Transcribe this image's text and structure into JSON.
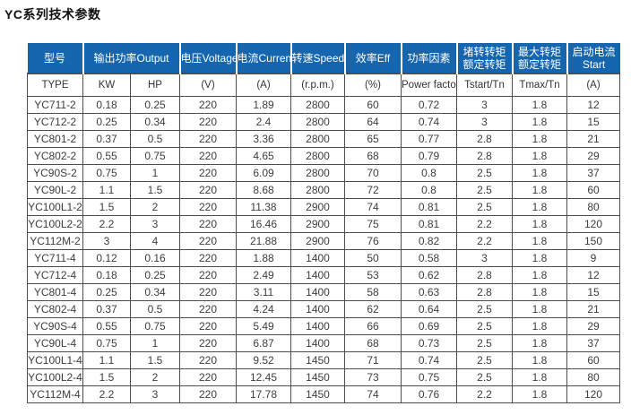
{
  "page": {
    "title": "YC系列技术参数"
  },
  "table": {
    "header_top": [
      {
        "lines": [
          "型号"
        ],
        "span": 1
      },
      {
        "lines": [
          "输出功率Output"
        ],
        "span": 2
      },
      {
        "lines": [
          "电压Voltage"
        ],
        "span": 1
      },
      {
        "lines": [
          "电流Current"
        ],
        "span": 1
      },
      {
        "lines": [
          "转速Speed"
        ],
        "span": 1
      },
      {
        "lines": [
          "效率Eff"
        ],
        "span": 1
      },
      {
        "lines": [
          "功率因素"
        ],
        "span": 1
      },
      {
        "lines": [
          "堵转转矩",
          "额定转矩"
        ],
        "span": 1
      },
      {
        "lines": [
          "最大转矩",
          "额定转矩"
        ],
        "span": 1
      },
      {
        "lines": [
          "启动电流",
          "Start"
        ],
        "span": 1
      }
    ],
    "header_sub": [
      "TYPE",
      "KW",
      "HP",
      "(V)",
      "(A)",
      "(r.p.m.)",
      "(%)",
      "Power factor",
      "Tstart/Tn",
      "Tmax/Tn",
      "(A)"
    ],
    "rows": [
      [
        "YC711-2",
        "0.18",
        "0.25",
        "220",
        "1.89",
        "2800",
        "60",
        "0.72",
        "3",
        "1.8",
        "12"
      ],
      [
        "YC712-2",
        "0.25",
        "0.34",
        "220",
        "2.4",
        "2800",
        "64",
        "0.74",
        "3",
        "1.8",
        "15"
      ],
      [
        "YC801-2",
        "0.37",
        "0.5",
        "220",
        "3.36",
        "2800",
        "65",
        "0.77",
        "2.8",
        "1.8",
        "21"
      ],
      [
        "YC802-2",
        "0.55",
        "0.75",
        "220",
        "4.65",
        "2800",
        "68",
        "0.79",
        "2.8",
        "1.8",
        "29"
      ],
      [
        "YC90S-2",
        "0.75",
        "1",
        "220",
        "6.09",
        "2800",
        "70",
        "0.8",
        "2.5",
        "1.8",
        "37"
      ],
      [
        "YC90L-2",
        "1.1",
        "1.5",
        "220",
        "8.68",
        "2800",
        "72",
        "0.8",
        "2.5",
        "1.8",
        "60"
      ],
      [
        "YC100L1-2",
        "1.5",
        "2",
        "220",
        "11.38",
        "2900",
        "74",
        "0.81",
        "2.5",
        "1.8",
        "80"
      ],
      [
        "YC100L2-2",
        "2.2",
        "3",
        "220",
        "16.46",
        "2900",
        "75",
        "0.81",
        "2.2",
        "1.8",
        "120"
      ],
      [
        "YC112M-2",
        "3",
        "4",
        "220",
        "21.88",
        "2900",
        "76",
        "0.82",
        "2.2",
        "1.8",
        "150"
      ],
      [
        "YC711-4",
        "0.12",
        "0.16",
        "220",
        "1.88",
        "1400",
        "50",
        "0.58",
        "3",
        "1.8",
        "9"
      ],
      [
        "YC712-4",
        "0.18",
        "0.25",
        "220",
        "2.49",
        "1400",
        "53",
        "0.62",
        "2.8",
        "1.8",
        "12"
      ],
      [
        "YC801-4",
        "0.25",
        "0.34",
        "220",
        "3.11",
        "1400",
        "58",
        "0.63",
        "2.8",
        "1.8",
        "15"
      ],
      [
        "YC802-4",
        "0.37",
        "0.5",
        "220",
        "4.24",
        "1400",
        "62",
        "0.64",
        "2.5",
        "1.8",
        "21"
      ],
      [
        "YC90S-4",
        "0.55",
        "0.75",
        "220",
        "5.49",
        "1400",
        "66",
        "0.69",
        "2.5",
        "1.8",
        "29"
      ],
      [
        "YC90L-4",
        "0.75",
        "1",
        "220",
        "6.87",
        "1400",
        "68",
        "0.73",
        "2.5",
        "1.8",
        "37"
      ],
      [
        "YC100L1-4",
        "1.1",
        "1.5",
        "220",
        "9.52",
        "1450",
        "71",
        "0.74",
        "2.5",
        "1.8",
        "60"
      ],
      [
        "YC100L2-4",
        "1.5",
        "2",
        "220",
        "12.45",
        "1450",
        "73",
        "0.75",
        "2.5",
        "1.8",
        "80"
      ],
      [
        "YC112M-4",
        "2.2",
        "3",
        "220",
        "17.78",
        "1450",
        "74",
        "0.76",
        "2.2",
        "1.8",
        "120"
      ]
    ],
    "colors": {
      "header_bg": "#1565af",
      "header_text": "#ffffff",
      "body_text": "#3d3d3d",
      "border": "#4d4d4d"
    }
  }
}
